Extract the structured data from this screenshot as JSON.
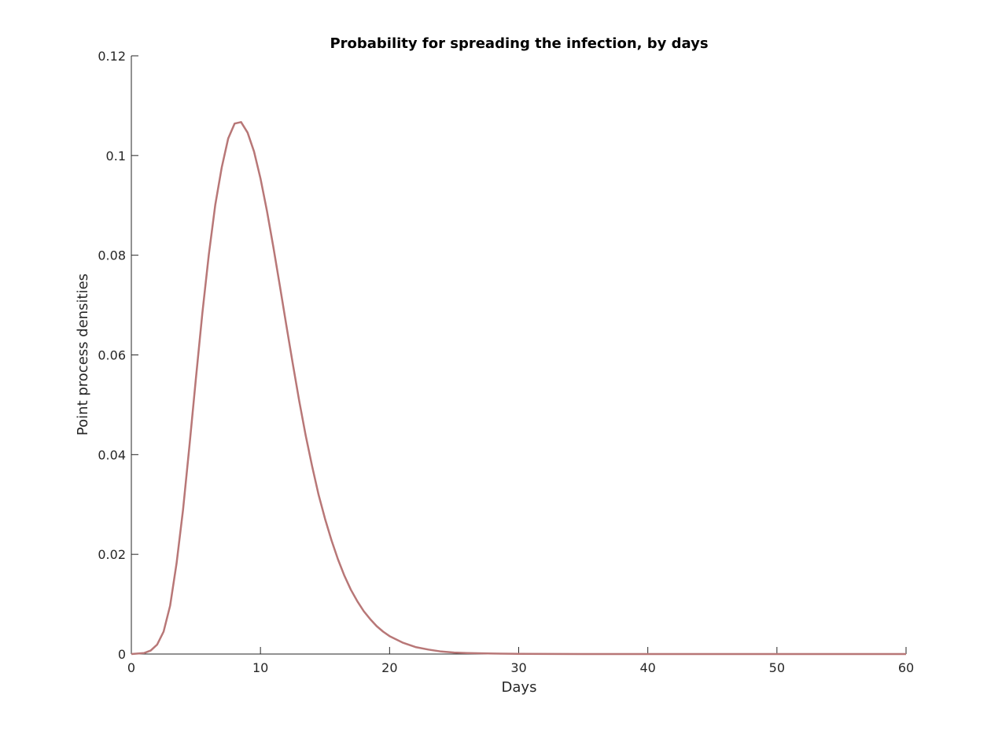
{
  "chart_data": {
    "type": "line",
    "title": "Probability for spreading the infection, by days",
    "xlabel": "Days",
    "ylabel": "Point process densities",
    "xlim": [
      0,
      60
    ],
    "ylim": [
      0,
      0.12
    ],
    "x_ticks": [
      0,
      10,
      20,
      30,
      40,
      50,
      60
    ],
    "x_tick_labels": [
      "0",
      "10",
      "20",
      "30",
      "40",
      "50",
      "60"
    ],
    "y_ticks": [
      0,
      0.02,
      0.04,
      0.06,
      0.08,
      0.1,
      0.12
    ],
    "y_tick_labels": [
      "0",
      "0.02",
      "0.04",
      "0.06",
      "0.08",
      "0.1",
      "0.12"
    ],
    "grid": false,
    "legend": "none",
    "series": [
      {
        "color": "#b87777",
        "x": [
          0,
          1,
          1.5,
          2,
          2.5,
          3,
          3.5,
          4,
          4.5,
          5,
          5.5,
          6,
          6.5,
          7,
          7.5,
          8,
          8.5,
          9,
          9.5,
          10,
          10.5,
          11,
          11.5,
          12,
          12.5,
          13,
          13.5,
          14,
          14.5,
          15,
          15.5,
          16,
          16.5,
          17,
          17.5,
          18,
          18.5,
          19,
          19.5,
          20,
          21,
          22,
          23,
          24,
          25,
          26,
          28,
          30,
          35,
          40,
          50,
          60
        ],
        "y": [
          0,
          0.0002,
          0.0007,
          0.0019,
          0.0045,
          0.0097,
          0.0182,
          0.0289,
          0.0418,
          0.0553,
          0.0684,
          0.0801,
          0.0901,
          0.0976,
          0.1034,
          0.1064,
          0.1067,
          0.1046,
          0.1008,
          0.0954,
          0.0889,
          0.0816,
          0.0739,
          0.066,
          0.0583,
          0.0508,
          0.0439,
          0.0377,
          0.032,
          0.0271,
          0.0228,
          0.019,
          0.0157,
          0.0129,
          0.0106,
          0.0086,
          0.007,
          0.0056,
          0.0045,
          0.0036,
          0.0023,
          0.0014,
          0.0009,
          0.0005,
          0.0003,
          0.0002,
          0.0001,
          3e-05,
          0,
          0,
          0,
          0
        ]
      }
    ]
  }
}
